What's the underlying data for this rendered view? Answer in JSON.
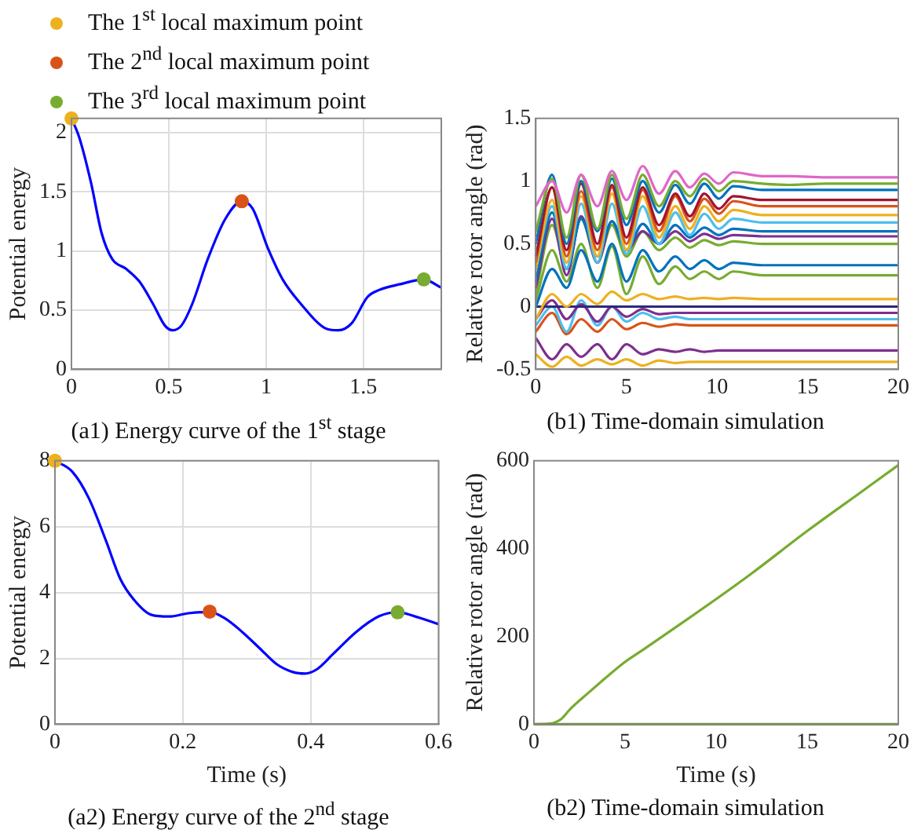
{
  "chart_data": [
    {
      "type": "line",
      "title": "(a1) Energy curve of the 1$^{st}$ stage",
      "ylabel": "Potential energy",
      "xlim": [
        0,
        1.9
      ],
      "ylim": [
        0,
        2.12
      ],
      "xticks": [
        0,
        0.5,
        1,
        1.5
      ],
      "yticks": [
        0,
        0.5,
        1,
        1.5,
        2
      ],
      "grid": true,
      "legend": "top",
      "series": [
        {
          "type": "line",
          "color": "#0000ff",
          "x": [
            0,
            0.04,
            0.1,
            0.155,
            0.21,
            0.28,
            0.35,
            0.42,
            0.48,
            0.52,
            0.565,
            0.62,
            0.7,
            0.79,
            0.875,
            0.93,
            1.01,
            1.085,
            1.18,
            1.3,
            1.37,
            1.44,
            1.52,
            1.58,
            1.69,
            1.81,
            1.9
          ],
          "values": [
            2.12,
            1.96,
            1.58,
            1.15,
            0.93,
            0.85,
            0.74,
            0.55,
            0.37,
            0.33,
            0.37,
            0.55,
            0.93,
            1.27,
            1.42,
            1.36,
            1.02,
            0.76,
            0.55,
            0.35,
            0.33,
            0.39,
            0.61,
            0.67,
            0.72,
            0.76,
            0.69
          ]
        },
        {
          "type": "scatter",
          "name": "The 1$^{st}$ local maximum point",
          "color": "#edb120",
          "marker": "circle",
          "x": [
            0
          ],
          "values": [
            2.12
          ]
        },
        {
          "type": "scatter",
          "name": "The 2$^{nd}$ local maximum point",
          "color": "#d95319",
          "marker": "circle",
          "x": [
            0.875
          ],
          "values": [
            1.42
          ]
        },
        {
          "type": "scatter",
          "name": "The 3$^{rd}$ local maximum point",
          "color": "#77ac30",
          "marker": "circle",
          "x": [
            1.81
          ],
          "values": [
            0.76
          ]
        }
      ]
    },
    {
      "type": "line",
      "title": "(b1) Time-domain simulation",
      "ylabel": "Relative rotor angle (rad)",
      "xlim": [
        0,
        20
      ],
      "ylim": [
        -0.5,
        1.5
      ],
      "xticks": [
        0,
        5,
        10,
        15,
        20
      ],
      "yticks": [
        -0.5,
        0,
        0.5,
        1,
        1.5
      ],
      "x": [
        0,
        0.9,
        1.7,
        2.5,
        3.4,
        4.2,
        5.0,
        5.9,
        6.8,
        7.7,
        8.5,
        9.3,
        10.1,
        10.9,
        12.5,
        14,
        16,
        18,
        20
      ],
      "series": [
        {
          "color": "#e066c8",
          "values": [
            0.8,
            1.0,
            0.75,
            1.05,
            0.8,
            1.08,
            0.85,
            1.12,
            0.9,
            1.08,
            0.95,
            1.06,
            0.98,
            1.07,
            1.04,
            1.04,
            1.03,
            1.03,
            1.03
          ]
        },
        {
          "color": "#77ac30",
          "values": [
            0.6,
            1.02,
            0.55,
            1.05,
            0.62,
            1.05,
            0.7,
            1.05,
            0.8,
            1.0,
            0.88,
            1.02,
            0.92,
            1.0,
            0.98,
            0.97,
            0.98,
            0.98,
            0.98
          ]
        },
        {
          "color": "#0072bd",
          "values": [
            0.5,
            1.05,
            0.5,
            1.0,
            0.6,
            1.02,
            0.65,
            1.0,
            0.75,
            0.97,
            0.82,
            0.98,
            0.86,
            0.96,
            0.93,
            0.93,
            0.93,
            0.93,
            0.93
          ]
        },
        {
          "color": "#a2142f",
          "values": [
            0.4,
            0.95,
            0.45,
            0.98,
            0.5,
            0.97,
            0.55,
            0.95,
            0.65,
            0.9,
            0.72,
            0.9,
            0.78,
            0.88,
            0.85,
            0.85,
            0.85,
            0.85,
            0.85
          ]
        },
        {
          "color": "#d95319",
          "values": [
            0.35,
            0.95,
            0.4,
            0.92,
            0.45,
            0.95,
            0.5,
            0.93,
            0.6,
            0.88,
            0.68,
            0.86,
            0.74,
            0.84,
            0.8,
            0.8,
            0.8,
            0.8,
            0.8
          ]
        },
        {
          "color": "#edb120",
          "values": [
            0.3,
            0.85,
            0.35,
            0.88,
            0.4,
            0.9,
            0.45,
            0.88,
            0.55,
            0.8,
            0.62,
            0.8,
            0.68,
            0.77,
            0.73,
            0.73,
            0.73,
            0.73,
            0.73
          ]
        },
        {
          "color": "#4dbeee",
          "values": [
            0.3,
            0.8,
            0.3,
            0.82,
            0.35,
            0.82,
            0.42,
            0.8,
            0.5,
            0.75,
            0.57,
            0.74,
            0.62,
            0.7,
            0.67,
            0.67,
            0.67,
            0.67,
            0.67
          ]
        },
        {
          "color": "#0072bd",
          "values": [
            0.2,
            0.75,
            0.3,
            0.7,
            0.4,
            0.68,
            0.45,
            0.66,
            0.5,
            0.65,
            0.55,
            0.63,
            0.57,
            0.62,
            0.6,
            0.6,
            0.6,
            0.6,
            0.6
          ]
        },
        {
          "color": "#7e2f8e",
          "values": [
            0.15,
            0.7,
            0.25,
            0.72,
            0.35,
            0.68,
            0.45,
            0.6,
            0.5,
            0.6,
            0.52,
            0.58,
            0.54,
            0.57,
            0.56,
            0.56,
            0.56,
            0.56,
            0.56
          ]
        },
        {
          "color": "#77ac30",
          "values": [
            0.1,
            0.65,
            0.3,
            0.7,
            0.35,
            0.65,
            0.4,
            0.6,
            0.45,
            0.55,
            0.47,
            0.53,
            0.49,
            0.52,
            0.5,
            0.5,
            0.5,
            0.5,
            0.5
          ]
        },
        {
          "color": "#0072bd",
          "values": [
            0.0,
            0.3,
            0.15,
            0.45,
            0.2,
            0.5,
            0.2,
            0.45,
            0.28,
            0.4,
            0.3,
            0.37,
            0.3,
            0.35,
            0.33,
            0.33,
            0.33,
            0.33,
            0.33
          ]
        },
        {
          "color": "#77ac30",
          "values": [
            0.05,
            0.45,
            0.2,
            0.5,
            0.15,
            0.48,
            0.1,
            0.4,
            0.18,
            0.32,
            0.22,
            0.28,
            0.22,
            0.28,
            0.25,
            0.25,
            0.25,
            0.25,
            0.25
          ]
        },
        {
          "color": "#edb120",
          "values": [
            -0.1,
            0.1,
            0.0,
            0.1,
            0.02,
            0.12,
            0.05,
            0.1,
            0.06,
            0.08,
            0.06,
            0.07,
            0.06,
            0.07,
            0.06,
            0.06,
            0.06,
            0.06,
            0.06
          ]
        },
        {
          "color": "#2a2a7a",
          "values": [
            0,
            0,
            0,
            0,
            0,
            0,
            0,
            0,
            0,
            0,
            0,
            0,
            0,
            0,
            0,
            0,
            0,
            0,
            0
          ]
        },
        {
          "color": "#7e2f8e",
          "values": [
            -0.1,
            0.05,
            -0.1,
            0.02,
            -0.12,
            0.0,
            -0.08,
            -0.02,
            -0.06,
            -0.05,
            -0.05,
            -0.05,
            -0.05,
            -0.05,
            -0.05,
            -0.05,
            -0.05,
            -0.05,
            -0.05
          ]
        },
        {
          "color": "#4dbeee",
          "values": [
            -0.15,
            0.0,
            -0.2,
            0.05,
            -0.15,
            0.0,
            -0.12,
            -0.05,
            -0.1,
            -0.08,
            -0.1,
            -0.1,
            -0.1,
            -0.1,
            -0.1,
            -0.1,
            -0.1,
            -0.1,
            -0.1
          ]
        },
        {
          "color": "#d95319",
          "values": [
            -0.2,
            -0.05,
            -0.22,
            -0.1,
            -0.2,
            -0.1,
            -0.18,
            -0.13,
            -0.16,
            -0.14,
            -0.15,
            -0.15,
            -0.15,
            -0.15,
            -0.15,
            -0.15,
            -0.15,
            -0.15,
            -0.15
          ]
        },
        {
          "color": "#7e2f8e",
          "values": [
            -0.25,
            -0.42,
            -0.3,
            -0.4,
            -0.3,
            -0.42,
            -0.3,
            -0.38,
            -0.34,
            -0.36,
            -0.34,
            -0.36,
            -0.35,
            -0.35,
            -0.35,
            -0.35,
            -0.35,
            -0.35,
            -0.35
          ]
        },
        {
          "color": "#edb120",
          "values": [
            -0.38,
            -0.48,
            -0.4,
            -0.47,
            -0.42,
            -0.46,
            -0.42,
            -0.47,
            -0.43,
            -0.45,
            -0.44,
            -0.44,
            -0.44,
            -0.44,
            -0.44,
            -0.44,
            -0.44,
            -0.44,
            -0.44
          ]
        }
      ]
    },
    {
      "type": "line",
      "title": "(a2) Energy curve of the 2$^{nd}$ stage",
      "xlabel": "Time (s)",
      "ylabel": "Potential energy",
      "xlim": [
        0,
        0.6
      ],
      "ylim": [
        0,
        8
      ],
      "xticks": [
        0,
        0.2,
        0.4,
        0.6
      ],
      "yticks": [
        0,
        2,
        4,
        6,
        8
      ],
      "grid": true,
      "series": [
        {
          "type": "line",
          "color": "#0000ff",
          "x": [
            0,
            0.027,
            0.053,
            0.08,
            0.102,
            0.124,
            0.151,
            0.178,
            0.209,
            0.242,
            0.267,
            0.293,
            0.32,
            0.347,
            0.373,
            0.391,
            0.409,
            0.436,
            0.471,
            0.507,
            0.536,
            0.569,
            0.6
          ],
          "values": [
            8,
            7.67,
            6.86,
            5.56,
            4.42,
            3.77,
            3.32,
            3.27,
            3.37,
            3.41,
            3.2,
            2.8,
            2.31,
            1.82,
            1.58,
            1.54,
            1.66,
            2.15,
            2.8,
            3.28,
            3.4,
            3.24,
            3.04
          ]
        },
        {
          "type": "scatter",
          "color": "#edb120",
          "marker": "circle",
          "x": [
            0
          ],
          "values": [
            8
          ]
        },
        {
          "type": "scatter",
          "color": "#d95319",
          "marker": "circle",
          "x": [
            0.242
          ],
          "values": [
            3.42
          ]
        },
        {
          "type": "scatter",
          "color": "#77ac30",
          "marker": "circle",
          "x": [
            0.536
          ],
          "values": [
            3.4
          ]
        }
      ]
    },
    {
      "type": "line",
      "title": "(b2) Time-domain simulation",
      "xlabel": "Time (s)",
      "ylabel": "Relative rotor angle (rad)",
      "xlim": [
        0,
        20
      ],
      "ylim": [
        0,
        600
      ],
      "xticks": [
        0,
        5,
        10,
        15,
        20
      ],
      "yticks": [
        0,
        200,
        400,
        600
      ],
      "series": [
        {
          "color": "#6b8e23",
          "x": [
            0,
            5,
            10,
            15,
            20
          ],
          "values": [
            0,
            0,
            0,
            0,
            0
          ]
        },
        {
          "color": "#77ac30",
          "x": [
            0,
            1,
            1.2,
            1.5,
            2,
            3,
            4,
            5,
            6,
            8,
            10,
            12,
            15,
            18,
            20
          ],
          "values": [
            0,
            2,
            5,
            12,
            35,
            72,
            108,
            142,
            170,
            227,
            285,
            345,
            440,
            530,
            590
          ]
        }
      ]
    }
  ]
}
